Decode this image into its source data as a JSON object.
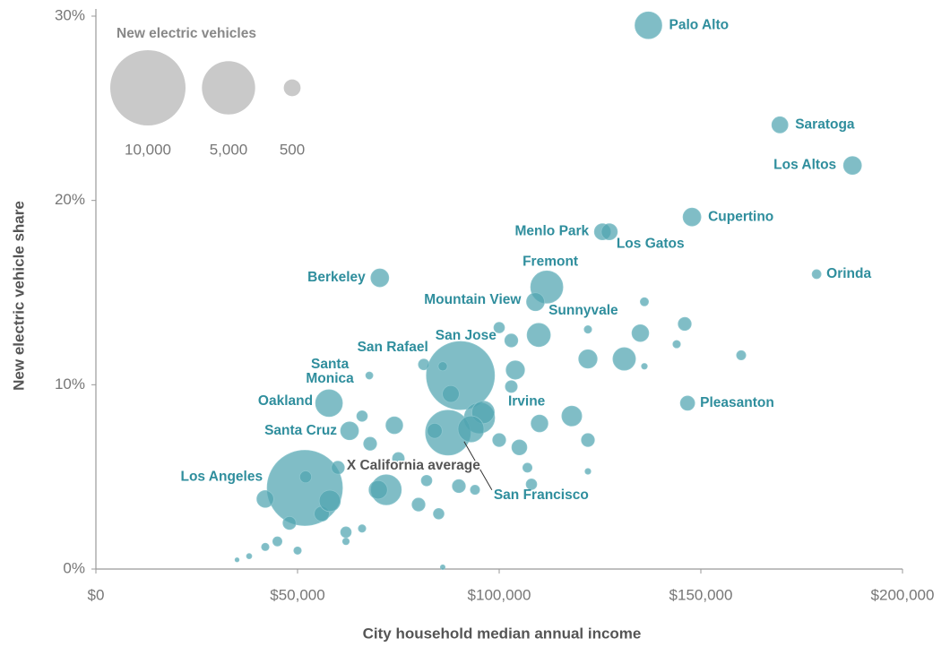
{
  "chart_data": {
    "type": "scatter",
    "xlabel": "City household median annual income",
    "ylabel": "New electric vehicle share",
    "xlim": [
      0,
      200000
    ],
    "ylim": [
      0,
      30
    ],
    "xticks": [
      {
        "value": 0,
        "label": "$0"
      },
      {
        "value": 50000,
        "label": "$50,000"
      },
      {
        "value": 100000,
        "label": "$100,000"
      },
      {
        "value": 150000,
        "label": "$150,000"
      },
      {
        "value": 200000,
        "label": "$200,000"
      }
    ],
    "yticks": [
      {
        "value": 0,
        "label": "0%"
      },
      {
        "value": 10,
        "label": "10%"
      },
      {
        "value": 20,
        "label": "20%"
      },
      {
        "value": 30,
        "label": "30%"
      }
    ],
    "color": "#4fa3b0",
    "size_legend": {
      "title": "New electric vehicles",
      "values": [
        10000,
        5000,
        500
      ],
      "labels": [
        "10,000",
        "5,000",
        "500"
      ],
      "color": "#c9c9c9"
    },
    "annotations": [
      {
        "text": "X California average",
        "x": 63300,
        "y": 5.6
      }
    ],
    "labels": [
      "Palo Alto",
      "Saratoga",
      "Los Altos",
      "Cupertino",
      "Menlo Park",
      "Los Gatos",
      "Orinda",
      "Fremont",
      "Berkeley",
      "Mountain View",
      "Sunnyvale",
      "San Jose",
      "San Rafael",
      "Santa Monica",
      "Oakland",
      "Irvine",
      "Pleasanton",
      "Santa Cruz",
      "Los Angeles",
      "San Francisco",
      null,
      null,
      null,
      null,
      null,
      null,
      null,
      null,
      null,
      null,
      null,
      null,
      null,
      null,
      null,
      null,
      null,
      null,
      null,
      null,
      null,
      null,
      null,
      null,
      null,
      null,
      null,
      null,
      null,
      null,
      null,
      null,
      null,
      null,
      null,
      null,
      null,
      null,
      null,
      null,
      null,
      null,
      null,
      null,
      null,
      null,
      null,
      null,
      null,
      null,
      null,
      null
    ],
    "x": [
      137000,
      169600,
      187600,
      147800,
      125600,
      127300,
      178700,
      111800,
      70400,
      109000,
      109800,
      90400,
      81300,
      67800,
      57800,
      95100,
      146700,
      62900,
      51800,
      87300,
      100000,
      103000,
      104000,
      103000,
      110000,
      118000,
      122000,
      131000,
      135000,
      146000,
      160000,
      136000,
      144000,
      122000,
      136000,
      122000,
      122000,
      105000,
      100000,
      96000,
      88000,
      86000,
      84000,
      82000,
      80000,
      75000,
      72000,
      70000,
      68000,
      66000,
      74000,
      60000,
      56000,
      48000,
      45000,
      42000,
      38000,
      35000,
      50000,
      62000,
      58000,
      66000,
      86000,
      85000,
      90000,
      94000,
      93000,
      108000,
      107000,
      42000,
      52000,
      62000
    ],
    "values": [
      29.5,
      24.1,
      21.9,
      19.1,
      18.3,
      18.3,
      16.0,
      15.3,
      15.8,
      14.5,
      12.7,
      10.5,
      11.1,
      10.5,
      9.0,
      8.2,
      9.0,
      7.5,
      4.4,
      7.4,
      13.1,
      12.4,
      10.8,
      9.9,
      7.9,
      8.3,
      11.4,
      11.4,
      12.8,
      13.3,
      11.6,
      14.5,
      12.2,
      13.0,
      11.0,
      7.0,
      5.3,
      6.6,
      7.0,
      8.5,
      9.5,
      11.0,
      7.5,
      4.8,
      3.5,
      6.0,
      4.3,
      4.3,
      6.8,
      8.3,
      7.8,
      5.5,
      3.0,
      2.5,
      1.5,
      1.2,
      0.7,
      0.5,
      1.0,
      2.0,
      3.7,
      2.2,
      0.1,
      3.0,
      4.5,
      4.3,
      7.6,
      4.6,
      5.5,
      3.8,
      5.0,
      1.5
    ],
    "sizes": [
      1275,
      460,
      567,
      567,
      460,
      460,
      142,
      1837,
      567,
      567,
      958,
      8186,
      204,
      91,
      1275,
      1638,
      363,
      567,
      10000,
      3543,
      200,
      300,
      600,
      250,
      500,
      700,
      600,
      900,
      500,
      300,
      150,
      120,
      100,
      100,
      60,
      300,
      60,
      400,
      300,
      900,
      500,
      150,
      400,
      200,
      300,
      250,
      1600,
      600,
      300,
      200,
      500,
      300,
      400,
      300,
      150,
      100,
      50,
      30,
      100,
      200,
      800,
      100,
      40,
      200,
      300,
      150,
      1200,
      200,
      150,
      500,
      250,
      80
    ]
  }
}
